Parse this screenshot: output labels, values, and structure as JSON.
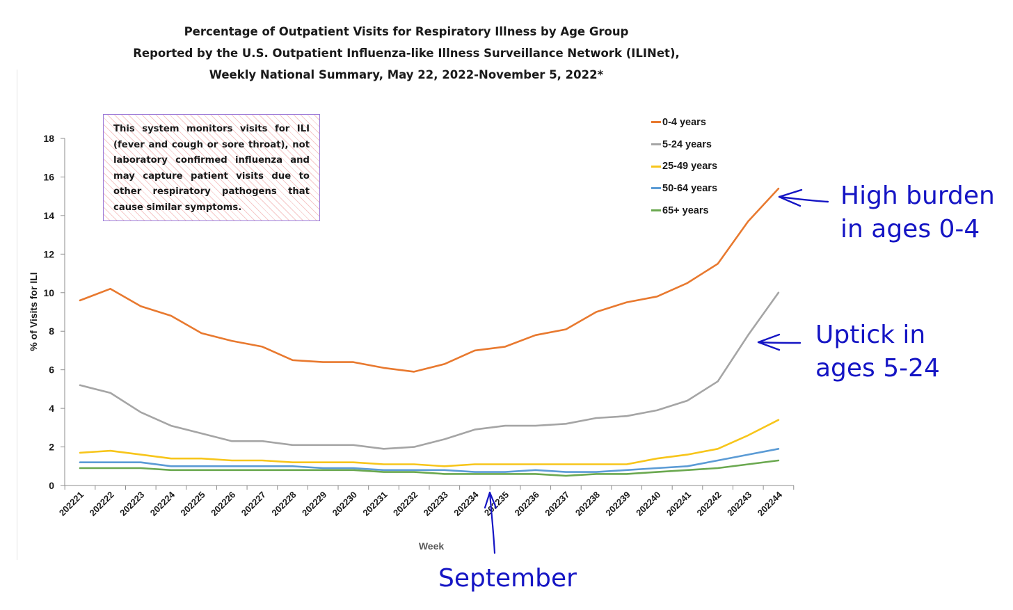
{
  "chart_data": {
    "type": "line",
    "title": [
      "Percentage of Outpatient Visits for Respiratory Illness by Age Group",
      "Reported by the U.S. Outpatient Influenza-like Illness Surveillance Network (ILINet),",
      "Weekly National Summary, May 22, 2022-November 5, 2022*"
    ],
    "xlabel": "Week",
    "ylabel": "% of Visits for ILI",
    "ylim": [
      0,
      18
    ],
    "yticks": [
      0,
      2,
      4,
      6,
      8,
      10,
      12,
      14,
      16,
      18
    ],
    "grid": false,
    "legend_position": "top-right",
    "categories": [
      "202221",
      "202222",
      "202223",
      "202224",
      "202225",
      "202226",
      "202227",
      "202228",
      "202229",
      "202230",
      "202231",
      "202232",
      "202233",
      "202234",
      "202235",
      "202236",
      "202237",
      "202238",
      "202239",
      "202240",
      "202241",
      "202242",
      "202243",
      "202244"
    ],
    "series": [
      {
        "name": "0-4 years",
        "color": "#e8792f",
        "values": [
          9.6,
          10.2,
          9.3,
          8.8,
          7.9,
          7.5,
          7.2,
          6.5,
          6.4,
          6.4,
          6.1,
          5.9,
          6.3,
          7.0,
          7.2,
          7.8,
          8.1,
          9.0,
          9.5,
          9.8,
          10.5,
          11.5,
          13.7,
          15.4
        ]
      },
      {
        "name": "5-24 years",
        "color": "#a5a5a5",
        "values": [
          5.2,
          4.8,
          3.8,
          3.1,
          2.7,
          2.3,
          2.3,
          2.1,
          2.1,
          2.1,
          1.9,
          2.0,
          2.4,
          2.9,
          3.1,
          3.1,
          3.2,
          3.5,
          3.6,
          3.9,
          4.4,
          5.4,
          7.8,
          10.0
        ]
      },
      {
        "name": "25-49 years",
        "color": "#f7c51a",
        "values": [
          1.7,
          1.8,
          1.6,
          1.4,
          1.4,
          1.3,
          1.3,
          1.2,
          1.2,
          1.2,
          1.1,
          1.1,
          1.0,
          1.1,
          1.1,
          1.1,
          1.1,
          1.1,
          1.1,
          1.4,
          1.6,
          1.9,
          2.6,
          3.4
        ]
      },
      {
        "name": "50-64 years",
        "color": "#5b9bd5",
        "values": [
          1.2,
          1.2,
          1.2,
          1.0,
          1.0,
          1.0,
          1.0,
          1.0,
          0.9,
          0.9,
          0.8,
          0.8,
          0.8,
          0.7,
          0.7,
          0.8,
          0.7,
          0.7,
          0.8,
          0.9,
          1.0,
          1.3,
          1.6,
          1.9
        ]
      },
      {
        "name": "65+ years",
        "color": "#6aa84f",
        "values": [
          0.9,
          0.9,
          0.9,
          0.8,
          0.8,
          0.8,
          0.8,
          0.8,
          0.8,
          0.8,
          0.7,
          0.7,
          0.6,
          0.6,
          0.6,
          0.6,
          0.5,
          0.6,
          0.6,
          0.7,
          0.8,
          0.9,
          1.1,
          1.3
        ]
      }
    ]
  },
  "note": "This system monitors visits for ILI (fever and cough or sore throat), not laboratory confirmed influenza and may capture patient visits due to other respiratory pathogens that cause similar symptoms.",
  "annotations": {
    "high_burden": [
      "High burden",
      "in ages 0-4"
    ],
    "uptick": [
      "Uptick in",
      "ages 5-24"
    ],
    "september": "September",
    "color": "#1515c4"
  }
}
